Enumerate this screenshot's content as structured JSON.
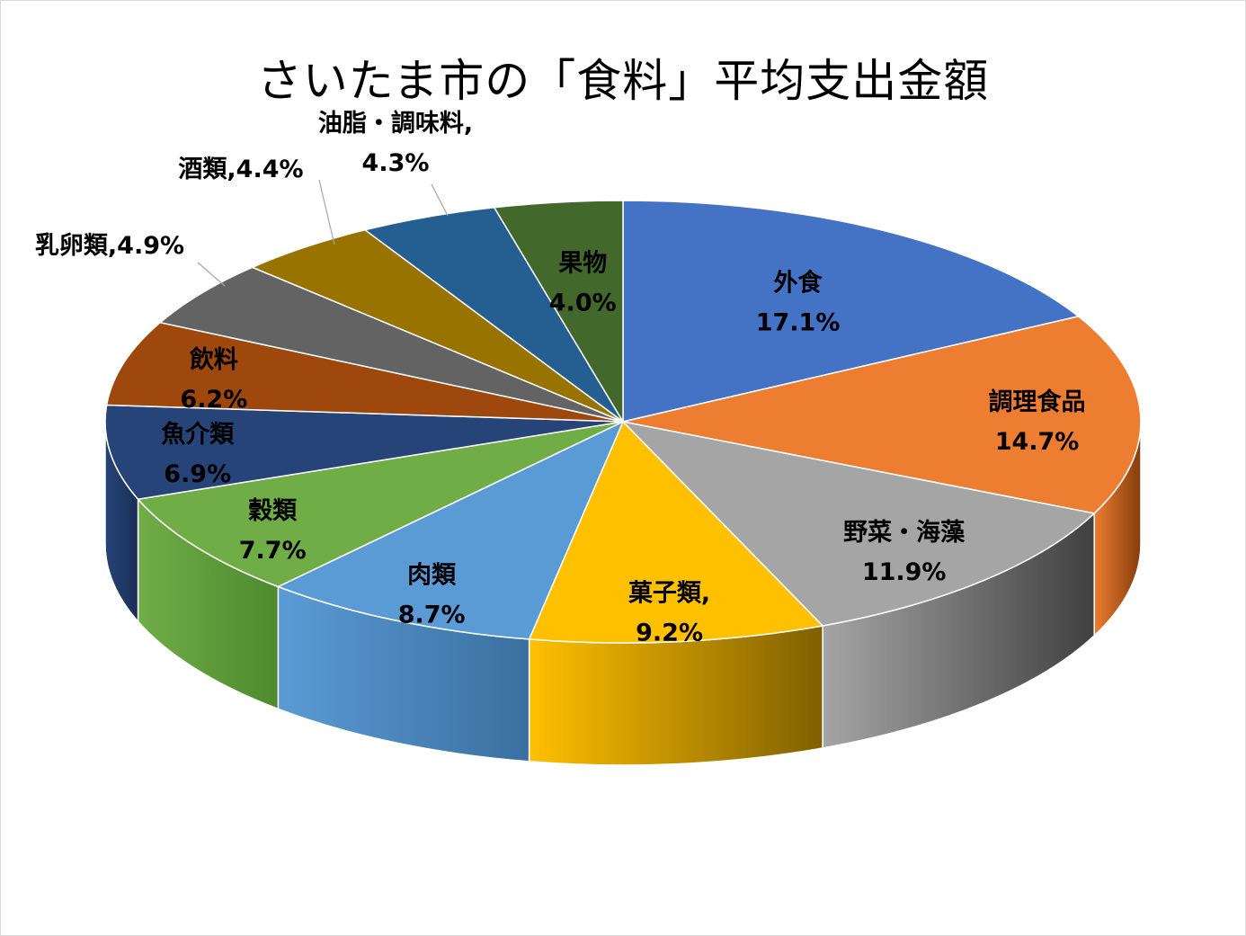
{
  "chart_data": {
    "type": "pie",
    "title": "さいたま市の「食料」平均支出金額",
    "style": "3d",
    "slices": [
      {
        "name": "外食",
        "value": 17.1,
        "label": "17.1%",
        "color": "#4472c4",
        "side_color": "#2f5597",
        "label_color": "#000000"
      },
      {
        "name": "調理食品",
        "value": 14.7,
        "label": "14.7%",
        "color": "#ed7d31",
        "side_color": "#843c0c",
        "label_color": "#000000"
      },
      {
        "name": "野菜・海藻",
        "value": 11.9,
        "label": "11.9%",
        "color": "#a5a5a5",
        "side_color": "#404040",
        "label_color": "#000000"
      },
      {
        "name": "菓子類,",
        "value": 9.2,
        "label": "9.2%",
        "color": "#ffc000",
        "side_color": "#7f6000",
        "label_color": "#000000"
      },
      {
        "name": "肉類",
        "value": 8.7,
        "label": "8.7%",
        "color": "#5b9bd5",
        "side_color": "#3a6f9f",
        "label_color": "#000000"
      },
      {
        "name": "穀類",
        "value": 7.7,
        "label": "7.7%",
        "color": "#70ad47",
        "side_color": "#4e8a2f",
        "label_color": "#000000"
      },
      {
        "name": "魚介類",
        "value": 6.9,
        "label": "6.9%",
        "color": "#264478",
        "side_color": "#1a2f55",
        "label_color": "#000000"
      },
      {
        "name": "飲料",
        "value": 6.2,
        "label": "6.2%",
        "color": "#9e480e",
        "side_color": "#6b300a",
        "label_color": "#000000"
      },
      {
        "name": "乳卵類,",
        "value": 4.9,
        "label": "4.9%",
        "color": "#636363",
        "side_color": "#404040",
        "label_color": "#000000"
      },
      {
        "name": "酒類,",
        "value": 4.4,
        "label": "4.4%",
        "color": "#997300",
        "side_color": "#664d00",
        "label_color": "#000000"
      },
      {
        "name": "油脂・調味料,",
        "value": 4.3,
        "label": "4.3%",
        "color": "#255e91",
        "side_color": "#183e60",
        "label_color": "#000000"
      },
      {
        "name": "果物",
        "value": 4.0,
        "label": "4.0%",
        "color": "#43682b",
        "side_color": "#2c451c",
        "label_color": "#000000"
      }
    ]
  }
}
